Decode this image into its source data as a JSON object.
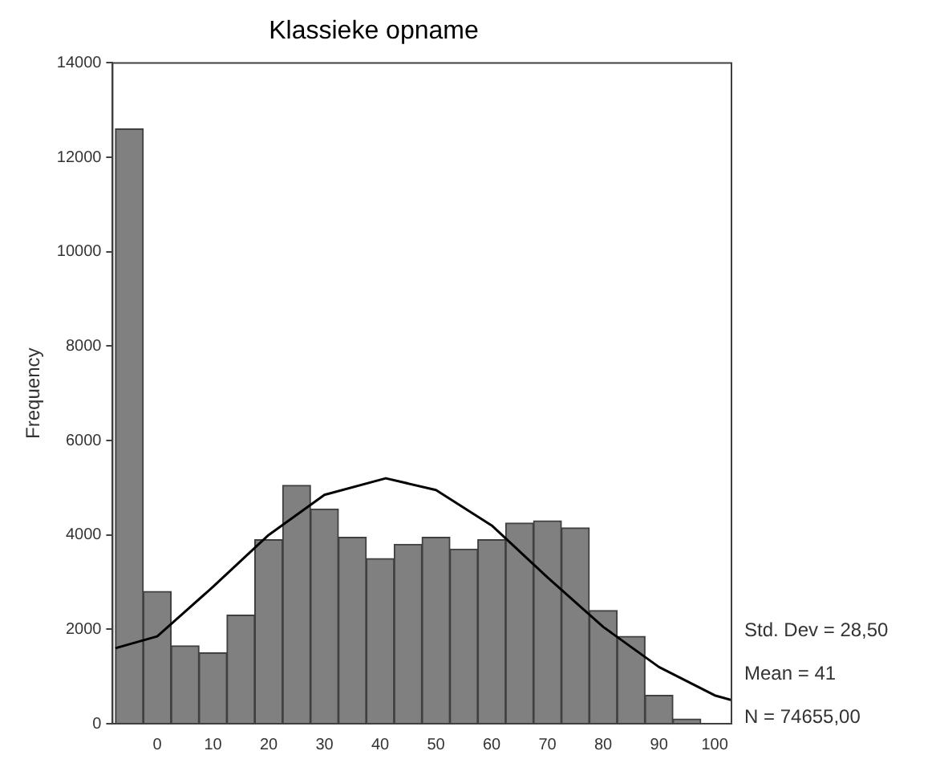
{
  "chart_data": {
    "type": "histogram",
    "title": "Klassieke opname",
    "ylabel": "Frequency",
    "bins": [
      -7.5,
      -2.5,
      2.5,
      7.5,
      12.5,
      17.5,
      22.5,
      27.5,
      32.5,
      37.5,
      42.5,
      47.5,
      52.5,
      57.5,
      62.5,
      67.5,
      72.5,
      77.5,
      82.5,
      87.5,
      92.5,
      97.5
    ],
    "values": [
      12600,
      2800,
      1650,
      1500,
      2300,
      3900,
      5050,
      4550,
      3950,
      3500,
      3800,
      3950,
      3700,
      3900,
      4250,
      4300,
      4150,
      2400,
      1850,
      600,
      100
    ],
    "color": "#808080",
    "series": [
      {
        "type": "line",
        "color": "#000000",
        "x": [
          -7.5,
          0,
          10,
          20,
          30,
          41,
          50,
          60,
          70,
          80,
          90,
          100,
          103
        ],
        "values": [
          1600,
          1850,
          2900,
          4000,
          4850,
          5200,
          4950,
          4200,
          3100,
          2050,
          1200,
          600,
          500
        ]
      }
    ],
    "xlim": [
      -8,
      103
    ],
    "xticks": [
      0,
      10,
      20,
      30,
      40,
      50,
      60,
      70,
      80,
      90,
      100
    ],
    "ylim": [
      0,
      14000
    ],
    "yticks": [
      0,
      2000,
      4000,
      6000,
      8000,
      10000,
      12000,
      14000
    ],
    "grid": false,
    "legend": false,
    "annotations": [
      "Std. Dev = 28,50",
      "Mean = 41",
      "N = 74655,00"
    ]
  }
}
